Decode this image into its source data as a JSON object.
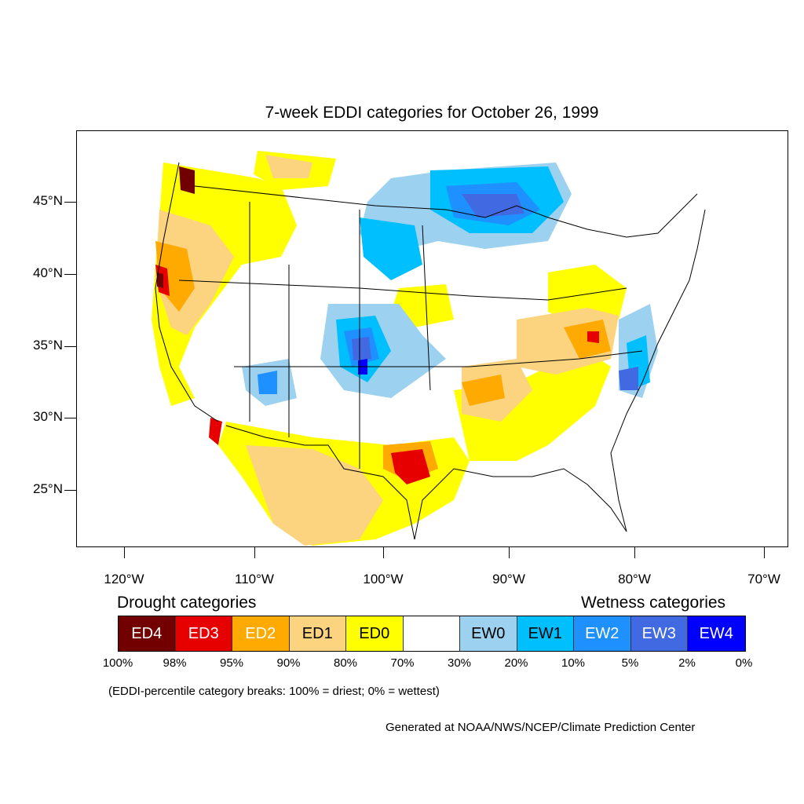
{
  "title": "7-week EDDI categories for October 26, 1999",
  "map": {
    "projection": "lon-lat",
    "lon_range": [
      -125,
      -68
    ],
    "lat_range": [
      21,
      50
    ],
    "y_axis_labels": [
      "45°N",
      "40°N",
      "35°N",
      "30°N",
      "25°N"
    ],
    "y_axis_values": [
      45,
      40,
      35,
      30,
      25
    ],
    "x_axis_labels": [
      "120°W",
      "110°W",
      "100°W",
      "90°W",
      "80°W",
      "70°W"
    ],
    "x_axis_values": [
      -120,
      -110,
      -100,
      -90,
      -80,
      -70
    ]
  },
  "legend": {
    "drought_label": "Drought categories",
    "wetness_label": "Wetness categories",
    "categories": [
      {
        "label": "ED4",
        "color": "#730000",
        "text_color": "#ffffff"
      },
      {
        "label": "ED3",
        "color": "#e60000",
        "text_color": "#ffffff"
      },
      {
        "label": "ED2",
        "color": "#ffaa00",
        "text_color": "#ffffff"
      },
      {
        "label": "ED1",
        "color": "#fcd37f",
        "text_color": "#000000"
      },
      {
        "label": "ED0",
        "color": "#ffff00",
        "text_color": "#000000"
      },
      {
        "label": "",
        "color": "#ffffff",
        "text_color": "#000000"
      },
      {
        "label": "EW0",
        "color": "#9dd1f0",
        "text_color": "#000000"
      },
      {
        "label": "EW1",
        "color": "#00bfff",
        "text_color": "#000000"
      },
      {
        "label": "EW2",
        "color": "#1e90ff",
        "text_color": "#ffffff"
      },
      {
        "label": "EW3",
        "color": "#4169e1",
        "text_color": "#ffffff"
      },
      {
        "label": "EW4",
        "color": "#0000ff",
        "text_color": "#ffffff"
      }
    ],
    "percent_breaks": [
      "100%",
      "98%",
      "95%",
      "90%",
      "80%",
      "70%",
      "30%",
      "20%",
      "10%",
      "5%",
      "2%",
      "0%"
    ]
  },
  "note": "(EDDI-percentile category breaks: 100% = driest; 0% = wettest)",
  "credit": "Generated at NOAA/NWS/NCEP/Climate Prediction Center"
}
